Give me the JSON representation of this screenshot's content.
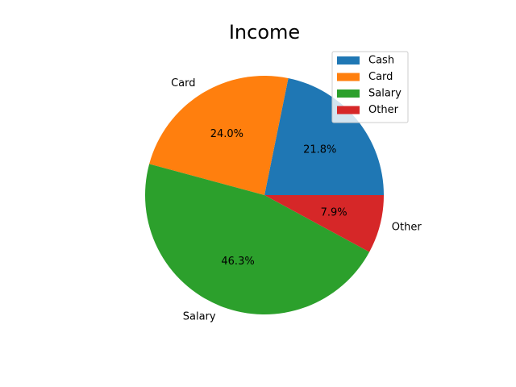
{
  "chart_data": {
    "type": "pie",
    "title": "Income",
    "start_angle_deg": 0,
    "direction": "counterclockwise",
    "slices": [
      {
        "label": "Cash",
        "value": 21.8,
        "pct_label": "21.8%",
        "color": "#1f77b4",
        "show_outer_label": false
      },
      {
        "label": "Card",
        "value": 24.0,
        "pct_label": "24.0%",
        "color": "#ff7f0e",
        "show_outer_label": true
      },
      {
        "label": "Salary",
        "value": 46.3,
        "pct_label": "46.3%",
        "color": "#2ca02c",
        "show_outer_label": true
      },
      {
        "label": "Other",
        "value": 7.9,
        "pct_label": "7.9%",
        "color": "#d62728",
        "show_outer_label": true
      }
    ],
    "legend": {
      "placement": "top-right",
      "entries": [
        "Cash",
        "Card",
        "Salary",
        "Other"
      ]
    }
  }
}
